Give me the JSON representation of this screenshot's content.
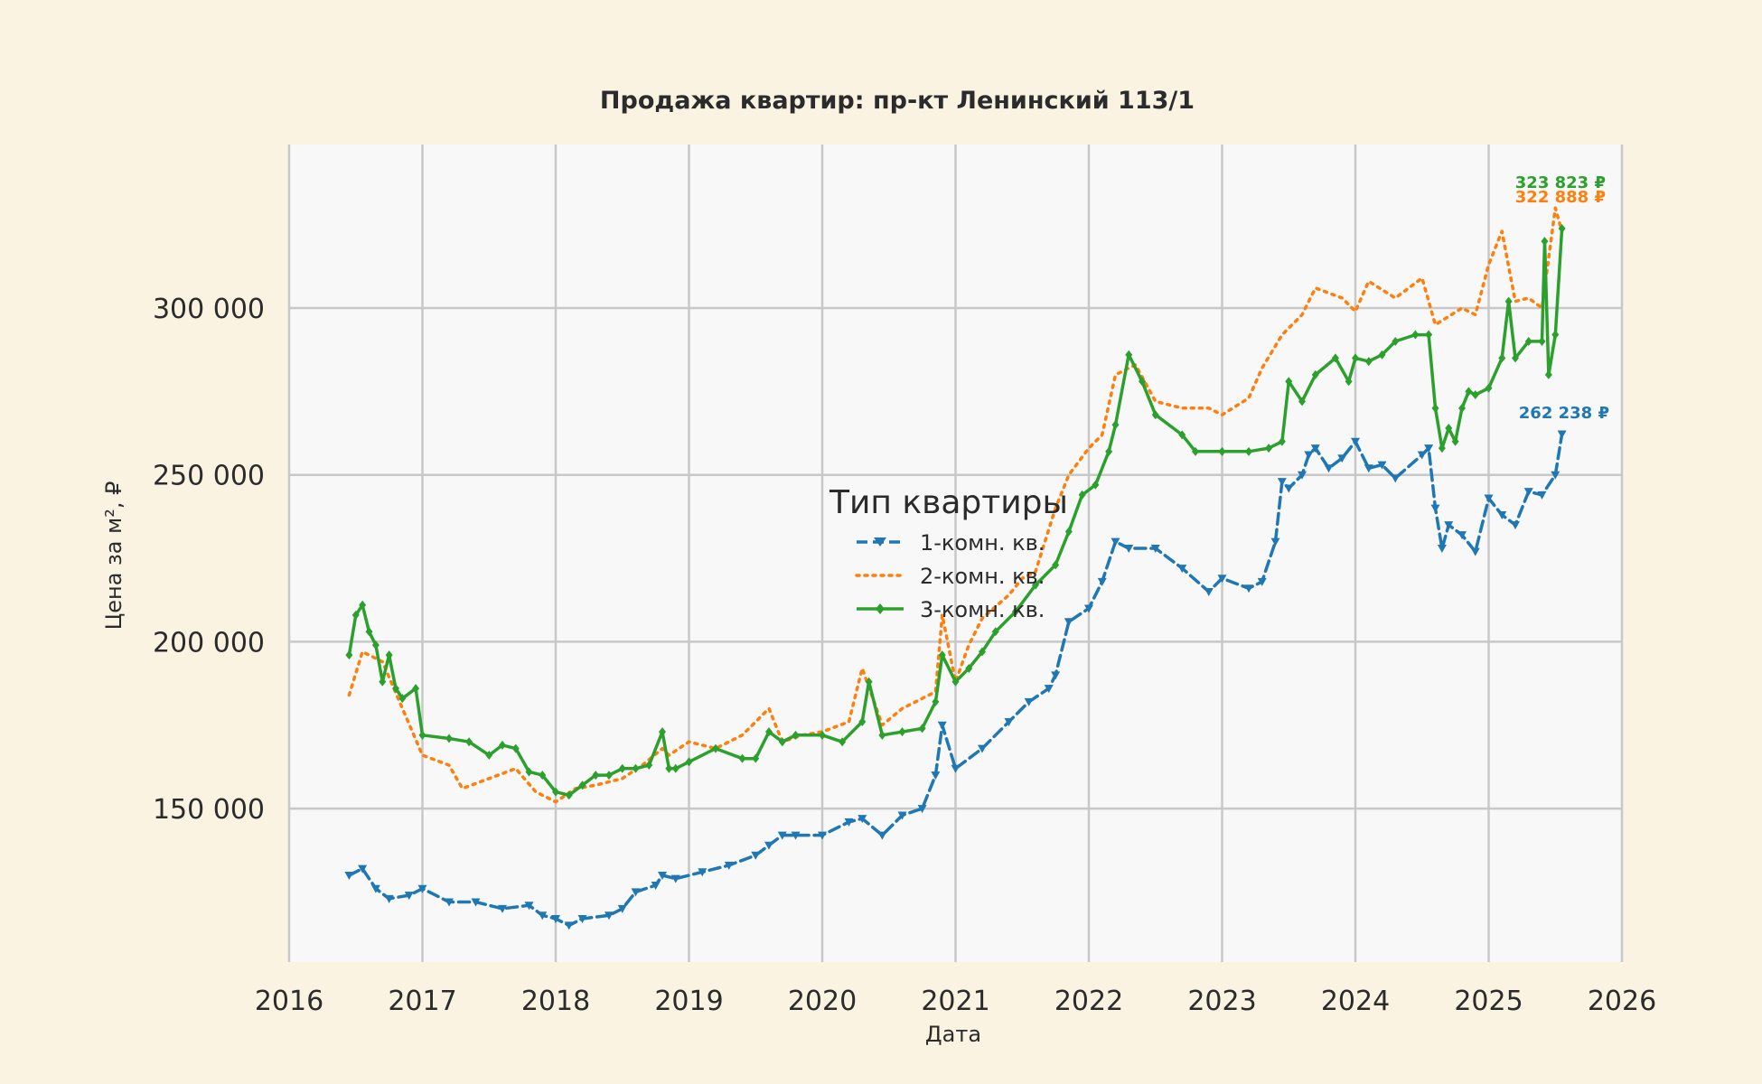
{
  "chart_data": {
    "type": "line",
    "title": "Продажа квартир: пр-кт Ленинский 113/1",
    "xlabel": "Дата",
    "ylabel": "Цена за м², ₽",
    "xlim": [
      2016,
      2026
    ],
    "ylim": [
      104000,
      349000
    ],
    "x_ticks": [
      2016,
      2017,
      2018,
      2019,
      2020,
      2021,
      2022,
      2023,
      2024,
      2025,
      2026
    ],
    "x_tick_labels": [
      "2016",
      "2017",
      "2018",
      "2019",
      "2020",
      "2021",
      "2022",
      "2023",
      "2024",
      "2025",
      "2026"
    ],
    "y_ticks": [
      150000,
      200000,
      250000,
      300000
    ],
    "y_tick_labels": [
      "150 000",
      "200 000",
      "250 000",
      "300 000"
    ],
    "grid": true,
    "legend": {
      "title": "Тип квартиры",
      "placement": "center"
    },
    "series": [
      {
        "name": "1-комн. кв.",
        "color": "#1f77b4",
        "dash": "dashed",
        "marker": "triangle-down",
        "end_label": "262 238 ₽",
        "x": [
          2016.45,
          2016.55,
          2016.65,
          2016.75,
          2016.9,
          2017.0,
          2017.2,
          2017.4,
          2017.6,
          2017.8,
          2017.9,
          2018.0,
          2018.1,
          2018.2,
          2018.4,
          2018.5,
          2018.6,
          2018.75,
          2018.8,
          2018.9,
          2019.1,
          2019.3,
          2019.5,
          2019.6,
          2019.7,
          2019.8,
          2020.0,
          2020.2,
          2020.3,
          2020.45,
          2020.6,
          2020.75,
          2020.85,
          2020.9,
          2021.0,
          2021.2,
          2021.4,
          2021.55,
          2021.7,
          2021.75,
          2021.85,
          2022.0,
          2022.1,
          2022.2,
          2022.3,
          2022.5,
          2022.7,
          2022.9,
          2023.0,
          2023.2,
          2023.3,
          2023.4,
          2023.45,
          2023.5,
          2023.6,
          2023.65,
          2023.7,
          2023.8,
          2023.9,
          2024.0,
          2024.1,
          2024.2,
          2024.3,
          2024.5,
          2024.55,
          2024.6,
          2024.65,
          2024.7,
          2024.8,
          2024.9,
          2025.0,
          2025.1,
          2025.2,
          2025.3,
          2025.4,
          2025.5,
          2025.55
        ],
        "values": [
          130000,
          132000,
          126000,
          123000,
          124000,
          126000,
          122000,
          122000,
          120000,
          121000,
          118000,
          117000,
          115000,
          117000,
          118000,
          120000,
          125000,
          127000,
          130000,
          129000,
          131000,
          133000,
          136000,
          139000,
          142000,
          142000,
          142000,
          146000,
          147000,
          142000,
          148000,
          150000,
          160000,
          175000,
          162000,
          168000,
          176000,
          182000,
          186000,
          190000,
          206000,
          210000,
          218000,
          230000,
          228000,
          228000,
          222000,
          215000,
          219000,
          216000,
          218000,
          230000,
          248000,
          246000,
          250000,
          256000,
          258000,
          252000,
          255000,
          260000,
          252000,
          253000,
          249000,
          256000,
          258000,
          240000,
          228000,
          235000,
          232000,
          227000,
          243000,
          238000,
          235000,
          245000,
          244000,
          250000,
          262238
        ]
      },
      {
        "name": "2-комн. кв.",
        "color": "#ff7f0e",
        "dash": "dotted",
        "marker": "none",
        "end_label": "322 888 ₽",
        "x": [
          2016.45,
          2016.55,
          2016.7,
          2016.85,
          2017.0,
          2017.2,
          2017.3,
          2017.5,
          2017.7,
          2017.85,
          2018.0,
          2018.15,
          2018.3,
          2018.5,
          2018.65,
          2018.8,
          2018.85,
          2019.0,
          2019.2,
          2019.4,
          2019.6,
          2019.7,
          2019.85,
          2020.0,
          2020.2,
          2020.3,
          2020.45,
          2020.6,
          2020.75,
          2020.85,
          2020.9,
          2021.0,
          2021.1,
          2021.2,
          2021.4,
          2021.5,
          2021.6,
          2021.75,
          2021.85,
          2022.0,
          2022.1,
          2022.2,
          2022.35,
          2022.5,
          2022.7,
          2022.9,
          2023.0,
          2023.2,
          2023.3,
          2023.45,
          2023.6,
          2023.7,
          2023.9,
          2024.0,
          2024.1,
          2024.3,
          2024.5,
          2024.6,
          2024.8,
          2024.9,
          2025.0,
          2025.1,
          2025.2,
          2025.3,
          2025.4,
          2025.5,
          2025.55
        ],
        "values": [
          184000,
          197000,
          194000,
          180000,
          166000,
          163000,
          156000,
          159000,
          162000,
          155000,
          152000,
          156000,
          157000,
          159000,
          163000,
          168000,
          166000,
          170000,
          168000,
          172000,
          180000,
          170000,
          172000,
          173000,
          176000,
          192000,
          175000,
          180000,
          183000,
          185000,
          208000,
          188000,
          199000,
          207000,
          214000,
          219000,
          221000,
          240000,
          250000,
          258000,
          262000,
          280000,
          283000,
          272000,
          270000,
          270000,
          268000,
          273000,
          282000,
          292000,
          298000,
          306000,
          303000,
          299000,
          308000,
          303000,
          309000,
          295000,
          300000,
          298000,
          313000,
          323000,
          302000,
          303000,
          300000,
          330000,
          322888
        ]
      },
      {
        "name": "3-комн. кв.",
        "color": "#2ca02c",
        "dash": "solid",
        "marker": "diamond",
        "end_label": "323 823 ₽",
        "x": [
          2016.45,
          2016.5,
          2016.55,
          2016.6,
          2016.65,
          2016.7,
          2016.75,
          2016.8,
          2016.85,
          2016.95,
          2017.0,
          2017.2,
          2017.35,
          2017.5,
          2017.6,
          2017.7,
          2017.8,
          2017.9,
          2018.0,
          2018.1,
          2018.2,
          2018.3,
          2018.4,
          2018.5,
          2018.6,
          2018.7,
          2018.8,
          2018.85,
          2018.9,
          2019.0,
          2019.2,
          2019.4,
          2019.5,
          2019.6,
          2019.7,
          2019.8,
          2020.0,
          2020.15,
          2020.3,
          2020.35,
          2020.45,
          2020.6,
          2020.75,
          2020.85,
          2020.9,
          2021.0,
          2021.1,
          2021.2,
          2021.3,
          2021.45,
          2021.6,
          2021.75,
          2021.85,
          2021.95,
          2022.05,
          2022.15,
          2022.2,
          2022.3,
          2022.4,
          2022.5,
          2022.7,
          2022.8,
          2023.0,
          2023.2,
          2023.35,
          2023.45,
          2023.5,
          2023.6,
          2023.7,
          2023.85,
          2023.95,
          2024.0,
          2024.1,
          2024.2,
          2024.3,
          2024.45,
          2024.55,
          2024.6,
          2024.65,
          2024.7,
          2024.75,
          2024.8,
          2024.85,
          2024.9,
          2025.0,
          2025.1,
          2025.15,
          2025.2,
          2025.3,
          2025.4,
          2025.42,
          2025.45,
          2025.5,
          2025.55
        ],
        "values": [
          196000,
          208000,
          211000,
          203000,
          199000,
          188000,
          196000,
          186000,
          183000,
          186000,
          172000,
          171000,
          170000,
          166000,
          169000,
          168000,
          161000,
          160000,
          155000,
          154000,
          157000,
          160000,
          160000,
          162000,
          162000,
          163000,
          173000,
          162000,
          162000,
          164000,
          168000,
          165000,
          165000,
          173000,
          170000,
          172000,
          172000,
          170000,
          176000,
          188000,
          172000,
          173000,
          174000,
          182000,
          196000,
          188000,
          192000,
          197000,
          203000,
          209000,
          217000,
          223000,
          233000,
          244000,
          247000,
          257000,
          265000,
          286000,
          278000,
          268000,
          262000,
          257000,
          257000,
          257000,
          258000,
          260000,
          278000,
          272000,
          280000,
          285000,
          278000,
          285000,
          284000,
          286000,
          290000,
          292000,
          292000,
          270000,
          258000,
          264000,
          260000,
          270000,
          275000,
          274000,
          276000,
          285000,
          302000,
          285000,
          290000,
          290000,
          320000,
          280000,
          292000,
          323823
        ]
      }
    ]
  }
}
